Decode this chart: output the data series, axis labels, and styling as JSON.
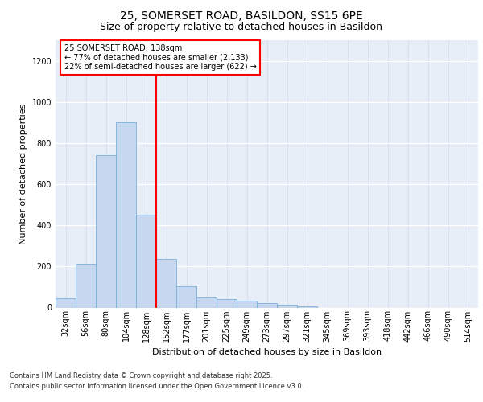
{
  "title1": "25, SOMERSET ROAD, BASILDON, SS15 6PE",
  "title2": "Size of property relative to detached houses in Basildon",
  "xlabel": "Distribution of detached houses by size in Basildon",
  "ylabel": "Number of detached properties",
  "categories": [
    "32sqm",
    "56sqm",
    "80sqm",
    "104sqm",
    "128sqm",
    "152sqm",
    "177sqm",
    "201sqm",
    "225sqm",
    "249sqm",
    "273sqm",
    "297sqm",
    "321sqm",
    "345sqm",
    "369sqm",
    "393sqm",
    "418sqm",
    "442sqm",
    "466sqm",
    "490sqm",
    "514sqm"
  ],
  "values": [
    45,
    215,
    740,
    900,
    450,
    235,
    105,
    50,
    40,
    35,
    20,
    15,
    5,
    0,
    0,
    0,
    0,
    0,
    0,
    0,
    0
  ],
  "bar_color": "#c5d8f0",
  "bar_edge_color": "#7ab0d8",
  "red_line_x": 4.5,
  "annotation_line1": "25 SOMERSET ROAD: 138sqm",
  "annotation_line2": "← 77% of detached houses are smaller (2,133)",
  "annotation_line3": "22% of semi-detached houses are larger (622) →",
  "annotation_box_color": "white",
  "annotation_box_edge": "red",
  "ylim": [
    0,
    1300
  ],
  "yticks": [
    0,
    200,
    400,
    600,
    800,
    1000,
    1200
  ],
  "background_color": "#e8eef7",
  "grid_color": "#d0d8e8",
  "footer1": "Contains HM Land Registry data © Crown copyright and database right 2025.",
  "footer2": "Contains public sector information licensed under the Open Government Licence v3.0.",
  "title1_fontsize": 10,
  "title2_fontsize": 9,
  "axis_label_fontsize": 8,
  "tick_fontsize": 7,
  "annot_fontsize": 7,
  "footer_fontsize": 6
}
